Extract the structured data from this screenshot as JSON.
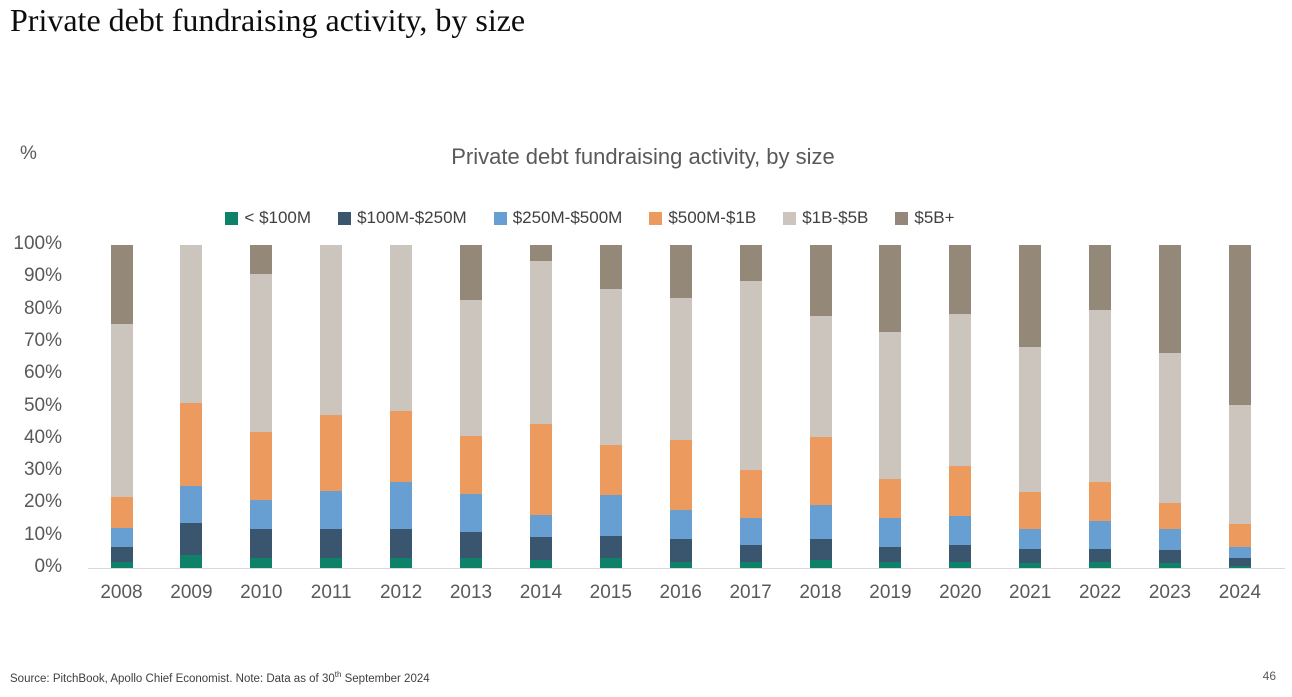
{
  "page": {
    "title": "Private debt fundraising activity, by size",
    "footer": {
      "source_prefix": "Source: PitchBook, Apollo Chief Economist. Note: Data as of 30",
      "superscript": "th",
      "source_suffix": " September 2024",
      "page_number": "46"
    }
  },
  "chart": {
    "title": "Private debt fundraising activity, by size",
    "y_axis_unit": "%"
  },
  "chart_data": {
    "type": "bar",
    "stacked": true,
    "title": "Private debt fundraising activity, by size",
    "xlabel": "",
    "ylabel": "%",
    "ylim": [
      0,
      100
    ],
    "y_tick_step": 10,
    "y_tick_suffix": "%",
    "grid": false,
    "legend_position": "top-center",
    "axis_line_color": "#d9d9d9",
    "text_color": "#595959",
    "categories": [
      "2008",
      "2009",
      "2010",
      "2011",
      "2012",
      "2013",
      "2014",
      "2015",
      "2016",
      "2017",
      "2018",
      "2019",
      "2020",
      "2021",
      "2022",
      "2023",
      "2024"
    ],
    "series": [
      {
        "name": "< $100M",
        "color": "#0e8169",
        "values": [
          2,
          4,
          3,
          3,
          3,
          3,
          2.5,
          3,
          2,
          2,
          2.5,
          2,
          2,
          1.5,
          2,
          1.5,
          0.5
        ]
      },
      {
        "name": "$100M-$250M",
        "color": "#3a566f",
        "values": [
          4.5,
          10,
          9,
          9,
          9,
          8,
          7,
          7,
          7,
          5,
          6.5,
          4.5,
          5,
          4.5,
          4,
          4,
          2.5
        ]
      },
      {
        "name": "$250M-$500M",
        "color": "#689fd3",
        "values": [
          6,
          11.5,
          9,
          12,
          14.5,
          12,
          7,
          12.5,
          9,
          8.5,
          10.5,
          9,
          9,
          6,
          8.5,
          6.5,
          3.5
        ]
      },
      {
        "name": "$500M-$1B",
        "color": "#ec9a5e",
        "values": [
          9.5,
          25.5,
          21,
          23.5,
          22,
          18,
          28,
          15.5,
          21.5,
          15,
          21,
          12,
          15.5,
          11.5,
          12,
          8,
          7
        ]
      },
      {
        "name": "$1B-$5B",
        "color": "#cbc5be",
        "values": [
          53.5,
          49,
          49,
          52.5,
          51.5,
          42,
          50.5,
          48.5,
          44,
          58.5,
          37.5,
          45.5,
          47,
          45,
          53.5,
          46.5,
          37
        ]
      },
      {
        "name": "$5B+",
        "color": "#948878",
        "values": [
          24.5,
          0,
          9,
          0,
          0,
          17,
          5,
          13.5,
          16.5,
          11,
          22,
          27,
          21.5,
          31.5,
          20,
          33.5,
          49.5
        ]
      }
    ]
  }
}
